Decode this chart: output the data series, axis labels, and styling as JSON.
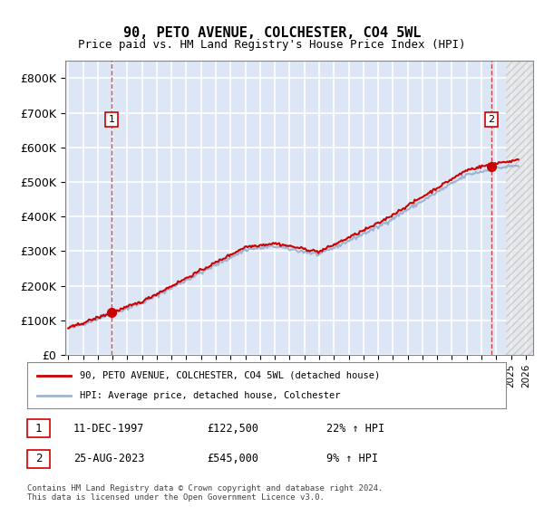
{
  "title": "90, PETO AVENUE, COLCHESTER, CO4 5WL",
  "subtitle": "Price paid vs. HM Land Registry's House Price Index (HPI)",
  "legend_line1": "90, PETO AVENUE, COLCHESTER, CO4 5WL (detached house)",
  "legend_line2": "HPI: Average price, detached house, Colchester",
  "annotation1_label": "1",
  "annotation1_date": "11-DEC-1997",
  "annotation1_price": "£122,500",
  "annotation1_hpi": "22% ↑ HPI",
  "annotation2_label": "2",
  "annotation2_date": "25-AUG-2023",
  "annotation2_price": "£545,000",
  "annotation2_hpi": "9% ↑ HPI",
  "footer": "Contains HM Land Registry data © Crown copyright and database right 2024.\nThis data is licensed under the Open Government Licence v3.0.",
  "hpi_color": "#a0b4d0",
  "price_color": "#cc0000",
  "bg_color": "#dce6f5",
  "annotation_color": "#cc0000",
  "grid_color": "#ffffff",
  "ylim": [
    0,
    850000
  ],
  "yticks": [
    0,
    100000,
    200000,
    300000,
    400000,
    500000,
    600000,
    700000,
    800000
  ],
  "ytick_labels": [
    "£0",
    "£100K",
    "£200K",
    "£300K",
    "£400K",
    "£500K",
    "£600K",
    "£700K",
    "£800K"
  ]
}
